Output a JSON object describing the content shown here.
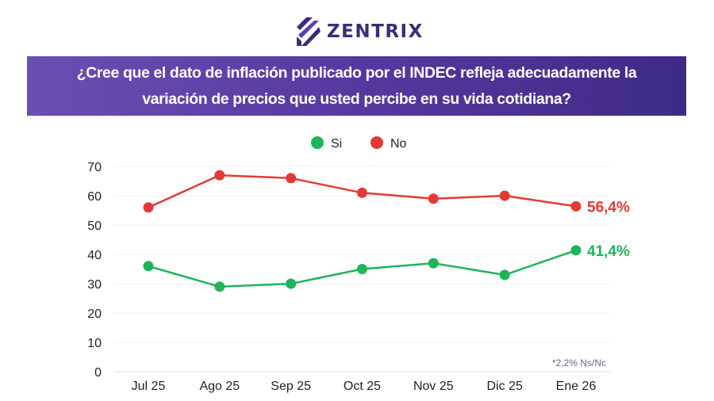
{
  "brand": {
    "name": "ZENTRIX"
  },
  "header": {
    "line1": "¿Cree que el dato de inflación publicado por el INDEC refleja adecuadamente la",
    "line2": "variación de precios que usted percibe en su vida cotidiana?"
  },
  "chart_data": {
    "type": "line",
    "categories": [
      "Jul 25",
      "Ago 25",
      "Sep 25",
      "Oct 25",
      "Nov 25",
      "Dic 25",
      "Ene 26"
    ],
    "series": [
      {
        "name": "Si",
        "color": "#1db45a",
        "values": [
          36,
          29,
          30,
          35,
          37,
          33,
          41.4
        ],
        "end_label": "41,4%"
      },
      {
        "name": "No",
        "color": "#e53935",
        "values": [
          56,
          67,
          66,
          61,
          59,
          60,
          56.4
        ],
        "end_label": "56,4%"
      }
    ],
    "ylim": [
      0,
      70
    ],
    "yticks": [
      "0",
      "10",
      "20",
      "30",
      "40",
      "50",
      "60",
      "70"
    ],
    "grid": true,
    "legend_position": "top-center",
    "annotation": "*2,2% Ns/Nc"
  }
}
